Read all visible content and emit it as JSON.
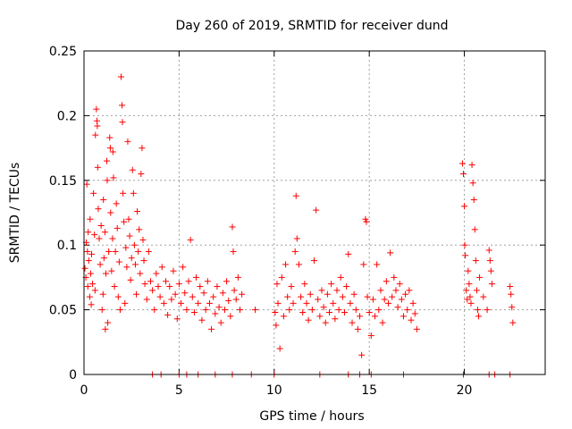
{
  "chart_data": {
    "type": "scatter",
    "title": "Day 260 of 2019, SRMTID for receiver dund",
    "xlabel": "GPS time / hours",
    "ylabel": "SRMTID / TECUs",
    "xlim": [
      0,
      24.25
    ],
    "ylim": [
      0,
      0.25
    ],
    "xticks": [
      0,
      5,
      10,
      15,
      20
    ],
    "xtick_labels": [
      "0",
      "5",
      "10",
      "15",
      "20"
    ],
    "yticks": [
      0,
      0.05,
      0.1,
      0.15,
      0.2,
      0.25
    ],
    "ytick_labels": [
      "0",
      "0.05",
      "0.1",
      "0.15",
      "0.2",
      "0.25"
    ],
    "grid": true,
    "marker": "+",
    "series_color": "#ff0000",
    "series": [
      {
        "name": "SRMTID",
        "points": [
          [
            0.05,
            0.082
          ],
          [
            0.1,
            0.075
          ],
          [
            0.12,
            0.102
          ],
          [
            0.15,
            0.147
          ],
          [
            0.18,
            0.095
          ],
          [
            0.2,
            0.068
          ],
          [
            0.22,
            0.11
          ],
          [
            0.25,
            0.088
          ],
          [
            0.3,
            0.06
          ],
          [
            0.32,
            0.12
          ],
          [
            0.35,
            0.078
          ],
          [
            0.38,
            0.054
          ],
          [
            0.4,
            0.093
          ],
          [
            0.45,
            0.07
          ],
          [
            0.5,
            0.14
          ],
          [
            0.55,
            0.108
          ],
          [
            0.58,
            0.065
          ],
          [
            0.6,
            0.185
          ],
          [
            0.65,
            0.205
          ],
          [
            0.68,
            0.196
          ],
          [
            0.7,
            0.192
          ],
          [
            0.72,
            0.16
          ],
          [
            0.75,
            0.128
          ],
          [
            0.8,
            0.105
          ],
          [
            0.85,
            0.085
          ],
          [
            0.9,
            0.115
          ],
          [
            0.95,
            0.05
          ],
          [
            1.0,
            0.062
          ],
          [
            1.02,
            0.135
          ],
          [
            1.05,
            0.09
          ],
          [
            1.1,
            0.11
          ],
          [
            1.12,
            0.035
          ],
          [
            1.15,
            0.078
          ],
          [
            1.2,
            0.165
          ],
          [
            1.22,
            0.15
          ],
          [
            1.25,
            0.04
          ],
          [
            1.3,
            0.095
          ],
          [
            1.35,
            0.183
          ],
          [
            1.38,
            0.175
          ],
          [
            1.4,
            0.125
          ],
          [
            1.45,
            0.08
          ],
          [
            1.5,
            0.105
          ],
          [
            1.52,
            0.172
          ],
          [
            1.55,
            0.152
          ],
          [
            1.6,
            0.068
          ],
          [
            1.65,
            0.095
          ],
          [
            1.7,
            0.132
          ],
          [
            1.75,
            0.113
          ],
          [
            1.8,
            0.06
          ],
          [
            1.85,
            0.087
          ],
          [
            1.9,
            0.05
          ],
          [
            1.95,
            0.23
          ],
          [
            2.0,
            0.208
          ],
          [
            2.02,
            0.195
          ],
          [
            2.05,
            0.14
          ],
          [
            2.1,
            0.118
          ],
          [
            2.15,
            0.055
          ],
          [
            2.2,
            0.098
          ],
          [
            2.25,
            0.083
          ],
          [
            2.3,
            0.18
          ],
          [
            2.35,
            0.12
          ],
          [
            2.4,
            0.107
          ],
          [
            2.45,
            0.073
          ],
          [
            2.5,
            0.09
          ],
          [
            2.55,
            0.158
          ],
          [
            2.6,
            0.14
          ],
          [
            2.65,
            0.1
          ],
          [
            2.7,
            0.085
          ],
          [
            2.75,
            0.062
          ],
          [
            2.8,
            0.126
          ],
          [
            2.85,
            0.095
          ],
          [
            2.9,
            0.112
          ],
          [
            2.95,
            0.078
          ],
          [
            3.0,
            0.155
          ],
          [
            3.05,
            0.175
          ],
          [
            3.1,
            0.104
          ],
          [
            3.15,
            0.088
          ],
          [
            3.2,
            0.07
          ],
          [
            3.3,
            0.058
          ],
          [
            3.4,
            0.095
          ],
          [
            3.5,
            0.072
          ],
          [
            3.6,
            0.065
          ],
          [
            3.7,
            0.05
          ],
          [
            3.8,
            0.078
          ],
          [
            3.9,
            0.068
          ],
          [
            4.0,
            0.06
          ],
          [
            4.1,
            0.083
          ],
          [
            4.2,
            0.055
          ],
          [
            4.3,
            0.072
          ],
          [
            4.4,
            0.046
          ],
          [
            4.5,
            0.068
          ],
          [
            4.6,
            0.058
          ],
          [
            4.7,
            0.08
          ],
          [
            4.8,
            0.062
          ],
          [
            4.9,
            0.043
          ],
          [
            5.0,
            0.07
          ],
          [
            5.1,
            0.055
          ],
          [
            5.2,
            0.083
          ],
          [
            5.3,
            0.063
          ],
          [
            5.4,
            0.05
          ],
          [
            5.5,
            0.072
          ],
          [
            5.6,
            0.104
          ],
          [
            5.7,
            0.06
          ],
          [
            5.8,
            0.048
          ],
          [
            5.9,
            0.075
          ],
          [
            6.0,
            0.055
          ],
          [
            6.1,
            0.068
          ],
          [
            6.2,
            0.042
          ],
          [
            6.3,
            0.063
          ],
          [
            6.4,
            0.05
          ],
          [
            6.5,
            0.072
          ],
          [
            6.6,
            0.055
          ],
          [
            6.7,
            0.035
          ],
          [
            6.8,
            0.06
          ],
          [
            6.9,
            0.047
          ],
          [
            7.0,
            0.068
          ],
          [
            7.1,
            0.052
          ],
          [
            7.2,
            0.04
          ],
          [
            7.3,
            0.063
          ],
          [
            7.4,
            0.05
          ],
          [
            7.5,
            0.072
          ],
          [
            7.6,
            0.057
          ],
          [
            7.7,
            0.045
          ],
          [
            7.8,
            0.114
          ],
          [
            7.85,
            0.095
          ],
          [
            7.9,
            0.065
          ],
          [
            8.0,
            0.058
          ],
          [
            8.1,
            0.075
          ],
          [
            8.2,
            0.05
          ],
          [
            8.3,
            0.062
          ],
          [
            9.0,
            0.05
          ],
          [
            10.05,
            0.048
          ],
          [
            10.1,
            0.038
          ],
          [
            10.15,
            0.07
          ],
          [
            10.2,
            0.055
          ],
          [
            10.3,
            0.02
          ],
          [
            10.4,
            0.075
          ],
          [
            10.5,
            0.045
          ],
          [
            10.6,
            0.085
          ],
          [
            10.7,
            0.06
          ],
          [
            10.8,
            0.05
          ],
          [
            10.9,
            0.068
          ],
          [
            11.0,
            0.055
          ],
          [
            11.1,
            0.095
          ],
          [
            11.15,
            0.138
          ],
          [
            11.2,
            0.105
          ],
          [
            11.3,
            0.085
          ],
          [
            11.4,
            0.06
          ],
          [
            11.5,
            0.048
          ],
          [
            11.6,
            0.07
          ],
          [
            11.7,
            0.055
          ],
          [
            11.8,
            0.042
          ],
          [
            11.9,
            0.062
          ],
          [
            12.0,
            0.05
          ],
          [
            12.1,
            0.088
          ],
          [
            12.2,
            0.127
          ],
          [
            12.3,
            0.058
          ],
          [
            12.4,
            0.045
          ],
          [
            12.5,
            0.065
          ],
          [
            12.6,
            0.052
          ],
          [
            12.7,
            0.04
          ],
          [
            12.8,
            0.062
          ],
          [
            12.9,
            0.048
          ],
          [
            13.0,
            0.07
          ],
          [
            13.1,
            0.055
          ],
          [
            13.2,
            0.043
          ],
          [
            13.3,
            0.065
          ],
          [
            13.4,
            0.05
          ],
          [
            13.5,
            0.075
          ],
          [
            13.6,
            0.06
          ],
          [
            13.7,
            0.048
          ],
          [
            13.8,
            0.068
          ],
          [
            13.9,
            0.093
          ],
          [
            14.0,
            0.055
          ],
          [
            14.1,
            0.04
          ],
          [
            14.2,
            0.062
          ],
          [
            14.3,
            0.05
          ],
          [
            14.4,
            0.035
          ],
          [
            14.5,
            0.045
          ],
          [
            14.6,
            0.015
          ],
          [
            14.7,
            0.085
          ],
          [
            14.8,
            0.12
          ],
          [
            14.85,
            0.118
          ],
          [
            14.9,
            0.06
          ],
          [
            15.0,
            0.048
          ],
          [
            15.1,
            0.03
          ],
          [
            15.2,
            0.058
          ],
          [
            15.3,
            0.045
          ],
          [
            15.4,
            0.085
          ],
          [
            15.5,
            0.05
          ],
          [
            15.6,
            0.065
          ],
          [
            15.7,
            0.04
          ],
          [
            15.8,
            0.058
          ],
          [
            15.9,
            0.072
          ],
          [
            16.0,
            0.055
          ],
          [
            16.1,
            0.094
          ],
          [
            16.2,
            0.06
          ],
          [
            16.3,
            0.075
          ],
          [
            16.4,
            0.065
          ],
          [
            16.5,
            0.052
          ],
          [
            16.6,
            0.07
          ],
          [
            16.7,
            0.058
          ],
          [
            16.8,
            0.045
          ],
          [
            16.9,
            0.062
          ],
          [
            17.0,
            0.05
          ],
          [
            17.1,
            0.065
          ],
          [
            17.2,
            0.042
          ],
          [
            17.3,
            0.055
          ],
          [
            17.4,
            0.047
          ],
          [
            17.5,
            0.035
          ],
          [
            19.9,
            0.163
          ],
          [
            19.95,
            0.155
          ],
          [
            20.0,
            0.13
          ],
          [
            20.02,
            0.1
          ],
          [
            20.05,
            0.092
          ],
          [
            20.1,
            0.065
          ],
          [
            20.15,
            0.058
          ],
          [
            20.2,
            0.08
          ],
          [
            20.25,
            0.07
          ],
          [
            20.3,
            0.06
          ],
          [
            20.35,
            0.055
          ],
          [
            20.4,
            0.162
          ],
          [
            20.45,
            0.148
          ],
          [
            20.5,
            0.135
          ],
          [
            20.55,
            0.112
          ],
          [
            20.6,
            0.088
          ],
          [
            20.65,
            0.065
          ],
          [
            20.7,
            0.05
          ],
          [
            20.75,
            0.045
          ],
          [
            20.8,
            0.075
          ],
          [
            21.0,
            0.06
          ],
          [
            21.2,
            0.05
          ],
          [
            21.3,
            0.096
          ],
          [
            21.35,
            0.088
          ],
          [
            21.4,
            0.08
          ],
          [
            21.45,
            0.07
          ],
          [
            22.4,
            0.068
          ],
          [
            22.45,
            0.062
          ],
          [
            22.5,
            0.052
          ],
          [
            22.55,
            0.04
          ],
          [
            3.6,
            0
          ],
          [
            4.05,
            0
          ],
          [
            5.0,
            0
          ],
          [
            5.4,
            0
          ],
          [
            6.0,
            0
          ],
          [
            6.9,
            0
          ],
          [
            7.8,
            0
          ],
          [
            8.8,
            0
          ],
          [
            10.0,
            0
          ],
          [
            12.4,
            0
          ],
          [
            13.9,
            0
          ],
          [
            14.5,
            0
          ],
          [
            15.1,
            0
          ],
          [
            16.8,
            0
          ],
          [
            19.95,
            0
          ],
          [
            21.3,
            0
          ],
          [
            21.6,
            0
          ],
          [
            22.4,
            0
          ]
        ]
      }
    ]
  }
}
